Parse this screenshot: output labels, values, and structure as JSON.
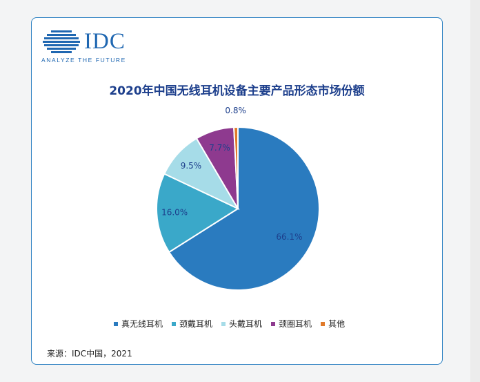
{
  "logo": {
    "brand": "IDC",
    "tagline": "ANALYZE THE FUTURE"
  },
  "chart_data": {
    "type": "pie",
    "title": "2020年中国无线耳机设备主要产品形态市场份额",
    "slices": [
      {
        "label": "真无线耳机",
        "value": 66.1,
        "display": "66.1%",
        "color": "#2a7bbf"
      },
      {
        "label": "颈戴耳机",
        "value": 16.0,
        "display": "16.0%",
        "color": "#3aa8c9"
      },
      {
        "label": "头戴耳机",
        "value": 9.5,
        "display": "9.5%",
        "color": "#a6dce8"
      },
      {
        "label": "颈圈耳机",
        "value": 7.7,
        "display": "7.7%",
        "color": "#8e3a8f"
      },
      {
        "label": "其他",
        "value": 0.8,
        "display": "0.8%",
        "color": "#e07a2a"
      }
    ],
    "legend_position": "bottom"
  },
  "footer": {
    "source": "来源：IDC中国，2021"
  }
}
